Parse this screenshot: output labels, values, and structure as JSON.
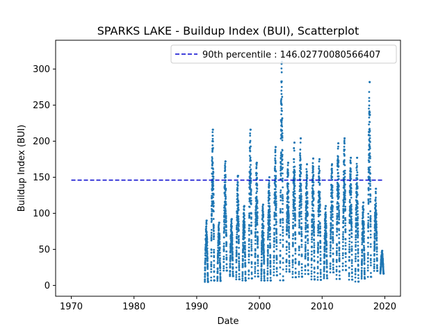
{
  "chart_data": {
    "type": "scatter",
    "title": "SPARKS LAKE - Buildup Index (BUI), Scatterplot",
    "xlabel": "Date",
    "ylabel": "Buildup Index (BUI)",
    "xlim": [
      1967.5,
      2022.5
    ],
    "ylim": [
      -15,
      340
    ],
    "xticks": [
      1970,
      1980,
      1990,
      2000,
      2010,
      2020
    ],
    "yticks": [
      0,
      50,
      100,
      150,
      200,
      250,
      300
    ],
    "grid": false,
    "legend_position": "top-right",
    "point_color": "#1f77b4",
    "series": [
      {
        "kind": "scatter",
        "seasons": [
          {
            "year": 1991,
            "peak": 90
          },
          {
            "year": 1992,
            "peak": 216
          },
          {
            "year": 1993,
            "peak": 87
          },
          {
            "year": 1994,
            "peak": 172
          },
          {
            "year": 1995,
            "peak": 92
          },
          {
            "year": 1996,
            "peak": 152
          },
          {
            "year": 1997,
            "peak": 110
          },
          {
            "year": 1998,
            "peak": 216
          },
          {
            "year": 1999,
            "peak": 170
          },
          {
            "year": 2000,
            "peak": 112
          },
          {
            "year": 2001,
            "peak": 150
          },
          {
            "year": 2002,
            "peak": 192
          },
          {
            "year": 2003,
            "peak": 310
          },
          {
            "year": 2004,
            "peak": 170
          },
          {
            "year": 2005,
            "peak": 198
          },
          {
            "year": 2006,
            "peak": 204
          },
          {
            "year": 2007,
            "peak": 168
          },
          {
            "year": 2008,
            "peak": 176
          },
          {
            "year": 2009,
            "peak": 175
          },
          {
            "year": 2010,
            "peak": 110
          },
          {
            "year": 2011,
            "peak": 168
          },
          {
            "year": 2012,
            "peak": 197
          },
          {
            "year": 2013,
            "peak": 204
          },
          {
            "year": 2014,
            "peak": 177
          },
          {
            "year": 2015,
            "peak": 177
          },
          {
            "year": 2016,
            "peak": 115
          },
          {
            "year": 2017,
            "peak": 282
          },
          {
            "year": 2018,
            "peak": 134
          },
          {
            "year": 2019,
            "peak": 48
          }
        ]
      },
      {
        "kind": "hline",
        "name": "90th percentile : 146.02770080566407",
        "y": 146.02770080566407,
        "x_range": [
          1970,
          2019.6
        ],
        "color": "#0000cd",
        "style": "dashed"
      }
    ]
  }
}
